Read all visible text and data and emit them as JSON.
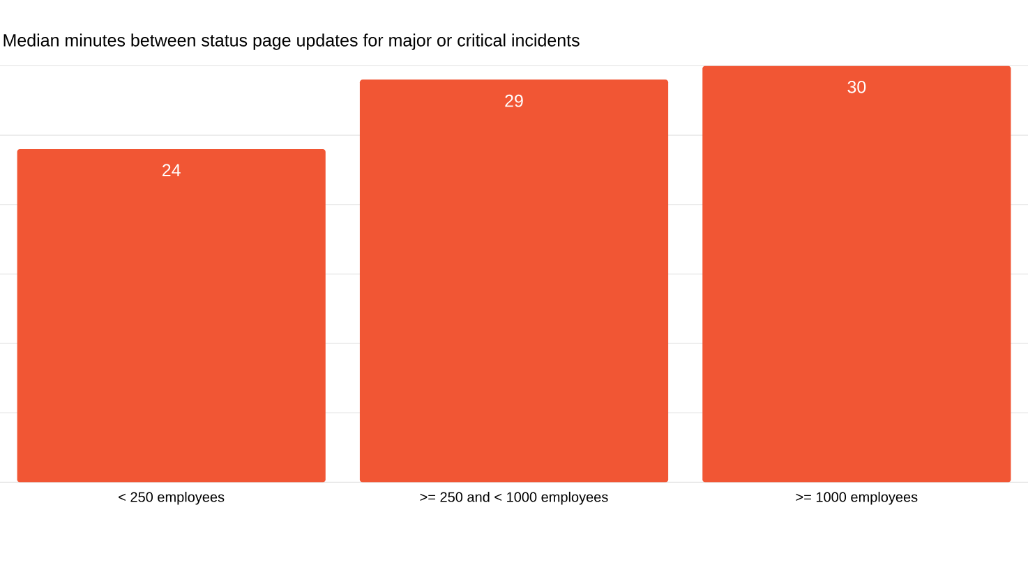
{
  "chart_data": {
    "type": "bar",
    "title": "Median minutes between status page updates for major or critical incidents",
    "categories": [
      "< 250 employees",
      ">= 250 and < 1000 employees",
      ">= 1000 employees"
    ],
    "values": [
      24,
      29,
      30
    ],
    "color": "#f15634",
    "ylim": [
      0,
      30
    ],
    "yticks": [
      {
        "value": 0,
        "label": null
      },
      {
        "value": 5,
        "label": null
      },
      {
        "value": 10,
        "label": null
      },
      {
        "value": 15,
        "label": null
      },
      {
        "value": 20,
        "label": null
      },
      {
        "value": 25,
        "label": null
      },
      {
        "value": 30,
        "label": null
      }
    ],
    "tick_labels": "x",
    "grid": "y",
    "data_labels": true
  }
}
